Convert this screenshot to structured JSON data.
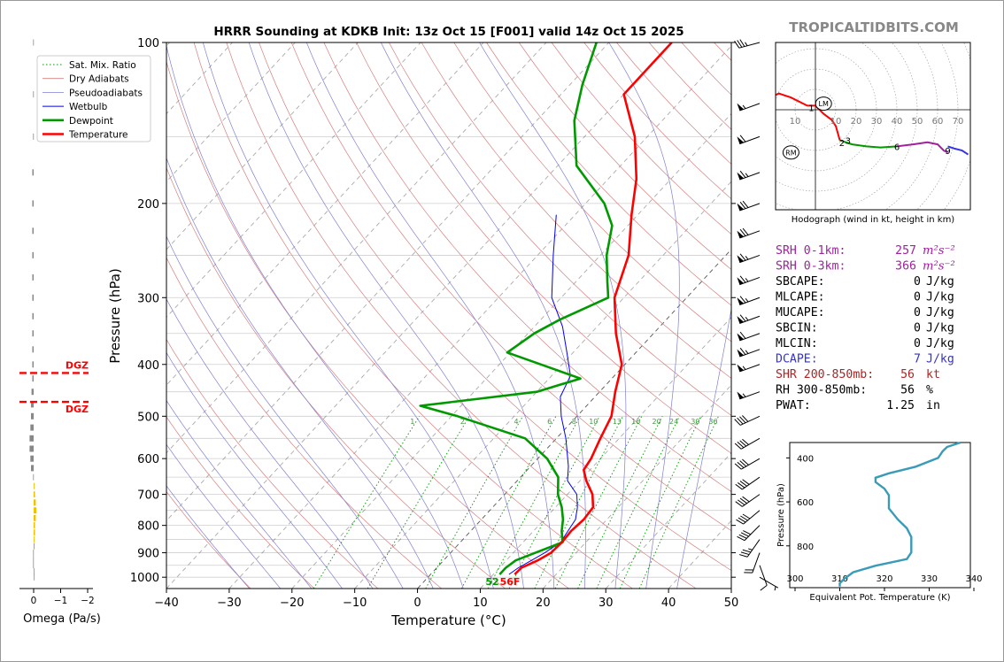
{
  "title": "HRRR Sounding at KDKB Init: 13z Oct 15 [F001] valid 14z Oct 15 2025",
  "watermark": "TROPICALTIDBITS.COM",
  "colors": {
    "temperature": "#ff0000",
    "dewpoint": "#009900",
    "wetbulb": "#0000ee",
    "dgz": "#ff0000",
    "srh": "#a020a0",
    "dcape": "#3333cc",
    "shr": "#b22222",
    "theta_e": "#3a9bb8"
  },
  "omega": {
    "xlabel": "Omega (Pa/s)",
    "xticks": [
      "0",
      "−1",
      "−2"
    ],
    "dgz_label": "DGZ",
    "dgz_bounds_hpa": [
      415,
      470
    ],
    "levels_hpa": [
      1000,
      975,
      950,
      925,
      900,
      875,
      850,
      825,
      800,
      775,
      750,
      725,
      700,
      675,
      650,
      625,
      600,
      575,
      550,
      525,
      500,
      475,
      450,
      425,
      400,
      375,
      350,
      325,
      300,
      275,
      250,
      225,
      200,
      175,
      150,
      125,
      100
    ],
    "values": [
      0,
      0,
      0.02,
      0.02,
      0.02,
      0,
      -0.03,
      -0.05,
      -0.05,
      -0.08,
      -0.1,
      -0.08,
      -0.05,
      -0.03,
      0.02,
      0.1,
      0.12,
      0.15,
      0.15,
      0.12,
      0.1,
      0.1,
      0.08,
      0.05,
      0.05,
      0.05,
      0.05,
      0.05,
      0.05,
      0.05,
      0.05,
      0.05,
      0.05,
      0.05,
      0.02,
      0.02,
      0.02
    ],
    "xlim": [
      0.2,
      -2.5
    ]
  },
  "skewt": {
    "ylabel": "Pressure (hPa)",
    "xlabel": "Temperature (°C)",
    "xticks": [
      -40,
      -30,
      -20,
      -10,
      0,
      10,
      20,
      30,
      40,
      50
    ],
    "yticks": [
      100,
      200,
      300,
      400,
      500,
      600,
      700,
      800,
      900,
      1000
    ],
    "xlim": [
      -40,
      50
    ],
    "plim": [
      1050,
      100
    ],
    "mixing_ratio_labels": [
      "1",
      "2",
      "4",
      "6",
      "8",
      "10",
      "13",
      "16",
      "20",
      "24",
      "30",
      "36"
    ],
    "mixing_ratios_gkg": [
      1,
      2,
      4,
      6,
      8,
      10,
      13,
      16,
      20,
      24,
      30,
      36
    ],
    "legend": [
      "Sat. Mix. Ratio",
      "Dry Adiabats",
      "Pseudoadiabats",
      "Wetbulb",
      "Dewpoint",
      "Temperature"
    ],
    "sfc_dewpoint_label": "52",
    "sfc_temp_label": "56F"
  },
  "chart_data": [
    {
      "type": "line",
      "title": "HRRR Sounding at KDKB Init: 13z Oct 15 [F001] valid 14z Oct 15 2025",
      "xlabel": "Temperature (°C)",
      "ylabel": "Pressure (hPa)",
      "xlim": [
        -40,
        50
      ],
      "ylim": [
        1050,
        100
      ],
      "grid": true,
      "legend_position": "top-left",
      "series": [
        {
          "name": "Temperature",
          "p": [
            988,
            960,
            930,
            900,
            860,
            820,
            780,
            740,
            700,
            660,
            630,
            600,
            550,
            500,
            450,
            400,
            350,
            300,
            250,
            210,
            180,
            150,
            125,
            110,
            100
          ],
          "t": [
            13.4,
            13.5,
            15.0,
            16.0,
            16.2,
            16.0,
            16.3,
            16.0,
            14.0,
            11.0,
            9.0,
            8.5,
            7.0,
            5.5,
            2.5,
            -0.5,
            -6.0,
            -11.5,
            -15.5,
            -21.0,
            -25.5,
            -32.0,
            -40.0,
            -40.0,
            -40.0
          ]
        },
        {
          "name": "Wetbulb",
          "p": [
            988,
            960,
            930,
            900,
            860,
            820,
            780,
            740,
            700,
            660,
            620,
            580,
            550,
            500,
            460,
            420,
            380,
            340,
            300,
            250,
            210
          ],
          "t": [
            12.5,
            13.0,
            14.0,
            15.0,
            16.0,
            15.5,
            15.0,
            13.5,
            11.5,
            8.0,
            6.0,
            3.5,
            1.5,
            -2.5,
            -5.5,
            -7.0,
            -11.0,
            -15.5,
            -21.5,
            -27.5,
            -33.0
          ]
        },
        {
          "name": "Dewpoint",
          "p": [
            988,
            960,
            930,
            900,
            860,
            820,
            780,
            740,
            700,
            650,
            600,
            550,
            500,
            478,
            450,
            425,
            410,
            380,
            350,
            330,
            300,
            280,
            250,
            220,
            200,
            170,
            140,
            120,
            100
          ],
          "t": [
            11.0,
            11.0,
            11.5,
            13.5,
            16.3,
            14.5,
            13.0,
            11.0,
            8.5,
            6.0,
            1.5,
            -5.0,
            -19.0,
            -26.5,
            -10.0,
            -5.0,
            -10.0,
            -20.5,
            -19.0,
            -17.0,
            -12.5,
            -15.0,
            -19.0,
            -22.5,
            -27.0,
            -37.0,
            -44.0,
            -48.0,
            -52.0
          ]
        }
      ]
    },
    {
      "type": "line",
      "title": "Omega (Pa/s)",
      "xlabel": "Omega (Pa/s)",
      "xlim": [
        0.2,
        -2.5
      ]
    },
    {
      "type": "line",
      "title": "Hodograph (wind in kt, height in km)",
      "xlim": [
        -45,
        75
      ],
      "ylim": [
        -50,
        33
      ],
      "ring_labels": [
        "10",
        "10",
        "20",
        "30",
        "40",
        "50",
        "60",
        "70"
      ],
      "series": [
        {
          "name": "0-1 km",
          "u": [
            -40,
            -40,
            -37,
            -30,
            -20,
            -18,
            -12,
            -4,
            0
          ],
          "v": [
            -2,
            2,
            5,
            7,
            7,
            8,
            6,
            2,
            2
          ]
        },
        {
          "name": "1-3 km",
          "u": [
            0,
            4,
            8,
            10,
            12
          ],
          "v": [
            2,
            -2,
            -5,
            -8,
            -15
          ]
        },
        {
          "name": "3-6 km",
          "u": [
            12,
            18,
            25,
            32,
            40
          ],
          "v": [
            -15,
            -17,
            -18,
            -18.5,
            -18
          ]
        },
        {
          "name": "6-9 km",
          "u": [
            40,
            48,
            55,
            60,
            63,
            65
          ],
          "v": [
            -18,
            -17,
            -16,
            -17,
            -20,
            -21
          ]
        },
        {
          "name": "9+ km",
          "u": [
            65,
            68,
            72,
            75
          ],
          "v": [
            -18,
            -19,
            -20,
            -22
          ]
        }
      ],
      "height_labels": [
        {
          "label": "1",
          "u": -2,
          "v": 1
        },
        {
          "label": "2",
          "u": 13,
          "v": -16
        },
        {
          "label": "3",
          "u": 16,
          "v": -15
        },
        {
          "name": "6",
          "label": "6",
          "u": 40,
          "v": -18
        },
        {
          "label": "9",
          "u": 65,
          "v": -20
        }
      ],
      "markers": [
        {
          "label": "LM",
          "u": 4,
          "v": 3
        },
        {
          "label": "RM",
          "u": -12,
          "v": -21
        }
      ]
    },
    {
      "type": "line",
      "xlabel": "Equivalent Pot. Temperature (K)",
      "ylabel": "Pressure (hPa)",
      "xlim": [
        300,
        340
      ],
      "xticks": [
        300,
        310,
        320,
        330,
        340
      ],
      "yticks": [
        400,
        600,
        800
      ],
      "ylim": [
        990,
        330
      ],
      "series": [
        {
          "name": "theta-e",
          "p": [
            330,
            350,
            370,
            400,
            440,
            470,
            490,
            510,
            540,
            570,
            600,
            630,
            680,
            720,
            760,
            800,
            830,
            860,
            890,
            920,
            950,
            970,
            985
          ],
          "te": [
            337,
            334,
            333,
            332,
            327,
            321,
            318,
            318,
            320,
            321,
            321,
            321,
            323,
            325,
            326,
            326,
            326,
            325,
            318,
            313,
            311,
            310,
            310
          ]
        }
      ]
    }
  ],
  "hodograph": {
    "caption": "Hodograph (wind in kt, height in km)",
    "ring_labels": [
      "10",
      "10",
      "20",
      "30",
      "40",
      "50",
      "60",
      "70"
    ],
    "lm": "LM",
    "rm": "RM"
  },
  "stats": [
    {
      "label": "SRH 0-1km:",
      "value": "257",
      "unit": "m²s⁻²",
      "color": "#a020a0"
    },
    {
      "label": "SRH 0-3km:",
      "value": "366",
      "unit": "m²s⁻²",
      "color": "#a020a0"
    },
    {
      "label": "SBCAPE:",
      "value": "0",
      "unit": "J/kg",
      "color": "#000000"
    },
    {
      "label": "MLCAPE:",
      "value": "0",
      "unit": "J/kg",
      "color": "#000000"
    },
    {
      "label": "MUCAPE:",
      "value": "0",
      "unit": "J/kg",
      "color": "#000000"
    },
    {
      "label": "SBCIN:",
      "value": "0",
      "unit": "J/kg",
      "color": "#000000"
    },
    {
      "label": "MLCIN:",
      "value": "0",
      "unit": "J/kg",
      "color": "#000000"
    },
    {
      "label": "DCAPE:",
      "value": "7",
      "unit": "J/kg",
      "color": "#3333cc"
    },
    {
      "label": "SHR 200-850mb:",
      "value": "56",
      "unit": "kt",
      "color": "#b22222"
    },
    {
      "label": "RH 300-850mb:",
      "value": "56",
      "unit": "%",
      "color": "#000000"
    },
    {
      "label": "PWAT:",
      "value": "1.25",
      "unit": "in",
      "color": "#000000"
    }
  ],
  "thetae": {
    "ylabel": "Pressure (hPa)",
    "xlabel": "Equivalent Pot. Temperature (K)"
  },
  "winds": [
    {
      "p": 100,
      "spd": 35,
      "dir": 255
    },
    {
      "p": 130,
      "spd": 55,
      "dir": 250
    },
    {
      "p": 150,
      "spd": 60,
      "dir": 250
    },
    {
      "p": 175,
      "spd": 65,
      "dir": 250
    },
    {
      "p": 200,
      "spd": 70,
      "dir": 250
    },
    {
      "p": 225,
      "spd": 70,
      "dir": 250
    },
    {
      "p": 250,
      "spd": 65,
      "dir": 250
    },
    {
      "p": 275,
      "spd": 65,
      "dir": 250
    },
    {
      "p": 300,
      "spd": 65,
      "dir": 250
    },
    {
      "p": 325,
      "spd": 65,
      "dir": 250
    },
    {
      "p": 350,
      "spd": 60,
      "dir": 250
    },
    {
      "p": 375,
      "spd": 65,
      "dir": 250
    },
    {
      "p": 400,
      "spd": 55,
      "dir": 250
    },
    {
      "p": 450,
      "spd": 55,
      "dir": 250
    },
    {
      "p": 500,
      "spd": 40,
      "dir": 245
    },
    {
      "p": 550,
      "spd": 40,
      "dir": 240
    },
    {
      "p": 600,
      "spd": 40,
      "dir": 240
    },
    {
      "p": 650,
      "spd": 40,
      "dir": 235
    },
    {
      "p": 700,
      "spd": 40,
      "dir": 235
    },
    {
      "p": 750,
      "spd": 40,
      "dir": 230
    },
    {
      "p": 800,
      "spd": 40,
      "dir": 225
    },
    {
      "p": 850,
      "spd": 35,
      "dir": 215
    },
    {
      "p": 900,
      "spd": 20,
      "dir": 200
    },
    {
      "p": 950,
      "spd": 10,
      "dir": 160
    },
    {
      "p": 1000,
      "spd": 5,
      "dir": 120
    }
  ]
}
